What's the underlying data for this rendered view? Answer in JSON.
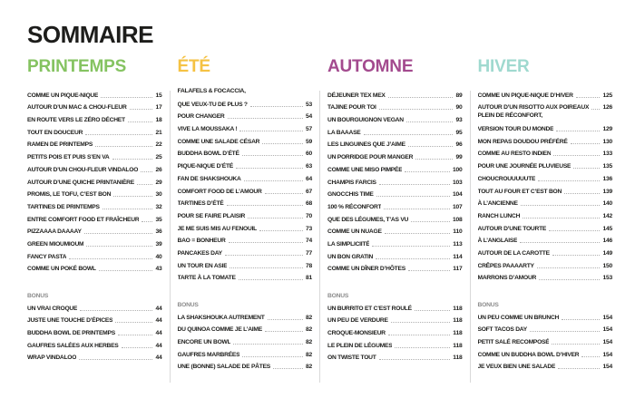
{
  "page": {
    "title": "SOMMAIRE",
    "ink_color": "#1d1d1b",
    "divider_color": "#d9d9d9",
    "bonus_color": "#8c8c8c",
    "dots_color": "#b0b0b0"
  },
  "columns": [
    {
      "id": "printemps",
      "header": "PRINTEMPS",
      "color": "#85c361",
      "bonus_label": "BONUS",
      "entries": [
        {
          "label": "COMME UN PIQUE-NIQUE",
          "page": "15"
        },
        {
          "label": "AUTOUR D’UN MAC & CHOU-FLEUR",
          "page": "17"
        },
        {
          "label": "EN ROUTE VERS LE ZÉRO DÉCHET",
          "page": "18"
        },
        {
          "label": "TOUT EN DOUCEUR",
          "page": "21"
        },
        {
          "label": "RAMEN DE PRINTEMPS",
          "page": "22"
        },
        {
          "label": "PETITS POIS ET PUIS S’EN VA",
          "page": "25"
        },
        {
          "label": "AUTOUR D’UN CHOU-FLEUR VINDALOO",
          "page": "26"
        },
        {
          "label": "AUTOUR D’UNE QUICHE PRINTANIÈRE",
          "page": "29"
        },
        {
          "label": "PROMIS, LE TOFU, C’EST BON",
          "page": "30"
        },
        {
          "label": "TARTINES DE PRINTEMPS",
          "page": "32"
        },
        {
          "label": "ENTRE COMFORT FOOD ET FRAÎCHEUR",
          "page": "35"
        },
        {
          "label": "PIZZAAAA DAAAAY",
          "page": "36"
        },
        {
          "label": "GREEN MIOUMIOUM",
          "page": "39"
        },
        {
          "label": "FANCY PASTA",
          "page": "40"
        },
        {
          "label": "COMME UN POKÉ BOWL",
          "page": "43"
        }
      ],
      "bonus": [
        {
          "label": "UN VRAI CROQUE",
          "page": "44"
        },
        {
          "label": "JUSTE UNE TOUCHE D’ÉPICES",
          "page": "44"
        },
        {
          "label": "BUDDHA BOWL DE PRINTEMPS",
          "page": "44"
        },
        {
          "label": "GAUFRES SALÉES AUX HERBES",
          "page": "44"
        },
        {
          "label": "WRAP VINDALOO",
          "page": "44"
        }
      ]
    },
    {
      "id": "ete",
      "header": "ÉTÉ",
      "color": "#f5c243",
      "bonus_label": "BONUS",
      "entries": [
        {
          "label": "FALAFELS & FOCACCIA,",
          "label2": "QUE VEUX-TU DE PLUS ?",
          "page": "53"
        },
        {
          "label": "POUR CHANGER",
          "page": "54"
        },
        {
          "label": "VIVE LA MOUSSAKA !",
          "page": "57"
        },
        {
          "label": "COMME UNE SALADE CÉSAR",
          "page": "59"
        },
        {
          "label": "BUDDHA BOWL D’ÉTÉ",
          "page": "60"
        },
        {
          "label": "PIQUE-NIQUE D’ÉTÉ",
          "page": "63"
        },
        {
          "label": "FAN DE SHAKSHOUKA",
          "page": "64"
        },
        {
          "label": "COMFORT FOOD DE L’AMOUR",
          "page": "67"
        },
        {
          "label": "TARTINES D’ÉTÉ",
          "page": "68"
        },
        {
          "label": "POUR SE FAIRE PLAISIR",
          "page": "70"
        },
        {
          "label": "JE ME SUIS MIS AU FENOUIL",
          "page": "73"
        },
        {
          "label": "BAO = BONHEUR",
          "page": "74"
        },
        {
          "label": "PANCAKES DAY",
          "page": "77"
        },
        {
          "label": "UN TOUR EN ASIE",
          "page": "78"
        },
        {
          "label": "TARTE À LA TOMATE",
          "page": "81"
        }
      ],
      "bonus": [
        {
          "label": "LA SHAKSHOUKA AUTREMENT",
          "page": "82"
        },
        {
          "label": "DU QUINOA COMME JE L’AIME",
          "page": "82"
        },
        {
          "label": "ENCORE UN BOWL",
          "page": "82"
        },
        {
          "label": "GAUFRES MARBRÉES",
          "page": "82"
        },
        {
          "label": "UNE (BONNE) SALADE DE PÂTES",
          "page": "82"
        }
      ]
    },
    {
      "id": "automne",
      "header": "AUTOMNE",
      "color": "#a34a8e",
      "bonus_label": "BONUS",
      "entries": [
        {
          "label": "DÉJEUNER TEX MEX",
          "page": "89"
        },
        {
          "label": "TAJINE POUR TOI",
          "page": "90"
        },
        {
          "label": "UN BOURGUIGNON VEGAN",
          "page": "93"
        },
        {
          "label": "LA BAAASE",
          "page": "95"
        },
        {
          "label": "LES LINGUINES QUE J’AIME",
          "page": "96"
        },
        {
          "label": "UN PORRIDGE POUR MANGER",
          "page": "99"
        },
        {
          "label": "COMME UNE MISO PIMPÉE",
          "page": "100"
        },
        {
          "label": "CHAMPIS FARCIS",
          "page": "103"
        },
        {
          "label": "GNOCCHIS TIME",
          "page": "104"
        },
        {
          "label": "100 % RÉCONFORT",
          "page": "107"
        },
        {
          "label": "QUE DES LÉGUMES, T’AS VU",
          "page": "108"
        },
        {
          "label": "COMME UN NUAGE",
          "page": "110"
        },
        {
          "label": "LA SIMPLICIITÉ",
          "page": "113"
        },
        {
          "label": "UN BON GRATIN",
          "page": "114"
        },
        {
          "label": "COMME UN DÎNER D’HÔTES",
          "page": "117"
        }
      ],
      "bonus": [
        {
          "label": "UN BURRITO ET C’EST ROULÉ",
          "page": "118"
        },
        {
          "label": "UN PEU DE VERDURE",
          "page": "118"
        },
        {
          "label": "CROQUE-MONSIEUR",
          "page": "118"
        },
        {
          "label": "LE PLEIN DE LÉGUMES",
          "page": "118"
        },
        {
          "label": "ON TWISTE TOUT",
          "page": "118"
        }
      ]
    },
    {
      "id": "hiver",
      "header": "HIVER",
      "color": "#9fd9cf",
      "bonus_label": "BONUS",
      "entries": [
        {
          "label": "COMME UN PIQUE-NIQUE D’HIVER",
          "page": "125"
        },
        {
          "label": "AUTOUR D’UN RISOTTO AUX POIREAUX",
          "page": "126"
        },
        {
          "label": "PLEIN DE RÉCONFORT,",
          "label2": "VERSION TOUR DU MONDE",
          "page": "129"
        },
        {
          "label": "MON REPAS DOUDOU PRÉFÉRÉ",
          "page": "130"
        },
        {
          "label": "COMME AU RESTO INDIEN",
          "page": "133"
        },
        {
          "label": "POUR UNE JOURNÉE PLUVIEUSE",
          "page": "135"
        },
        {
          "label": "CHOUCROUUUUUTE",
          "page": "136"
        },
        {
          "label": "TOUT AU FOUR ET C’EST BON",
          "page": "139"
        },
        {
          "label": "À L’ANCIENNE",
          "page": "140"
        },
        {
          "label": "RANCH LUNCH",
          "page": "142"
        },
        {
          "label": "AUTOUR D’UNE TOURTE",
          "page": "145"
        },
        {
          "label": "À L’ANGLAISE",
          "page": "146"
        },
        {
          "label": "AUTOUR DE LA CAROTTE",
          "page": "149"
        },
        {
          "label": "CRÊPES PAAAARTY",
          "page": "150"
        },
        {
          "label": "MARRONS D’AMOUR",
          "page": "153"
        }
      ],
      "bonus": [
        {
          "label": "UN PEU COMME UN BRUNCH",
          "page": "154"
        },
        {
          "label": "SOFT TACOS DAY",
          "page": "154"
        },
        {
          "label": "PETIT SALÉ RECOMPOSÉ",
          "page": "154"
        },
        {
          "label": "COMME UN BUDDHA BOWL D’HIVER",
          "page": "154"
        },
        {
          "label": "JE VEUX BIEN UNE SALADE",
          "page": "154"
        }
      ]
    }
  ]
}
